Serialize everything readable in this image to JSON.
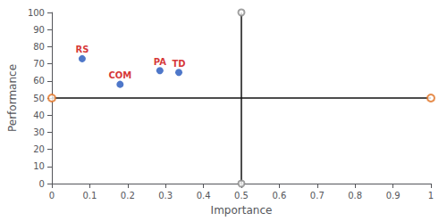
{
  "chart_data": {
    "type": "scatter",
    "xlabel": "Importance",
    "ylabel": "Performance",
    "x": [
      0.08,
      0.18,
      0.285,
      0.335
    ],
    "values": [
      73,
      58,
      66,
      65
    ],
    "color": "#2255bb",
    "annotations": [
      {
        "text": "RS",
        "x": 0.08,
        "y": 73,
        "color": "#cc0000"
      },
      {
        "text": "COM",
        "x": 0.18,
        "y": 58,
        "color": "#cc0000"
      },
      {
        "text": "PA",
        "x": 0.285,
        "y": 66,
        "color": "#cc0000"
      },
      {
        "text": "TD",
        "x": 0.335,
        "y": 65,
        "color": "#cc0000"
      }
    ],
    "crosshair": {
      "x": 0.5,
      "y": 50,
      "color": "#111111"
    },
    "endpoints": {
      "x": [
        0,
        1
      ],
      "values": [
        50,
        50
      ],
      "color": "#e07020",
      "marker": "open circle"
    },
    "intersections": {
      "x": [
        0.5,
        0.5
      ],
      "values": [
        0,
        100
      ],
      "color": "#888888",
      "marker": "open circle"
    },
    "xlim": [
      0,
      1
    ],
    "ylim": [
      0,
      100
    ],
    "xticks": [
      0,
      0.1,
      0.2,
      0.3,
      0.4,
      0.5,
      0.6,
      0.7,
      0.8,
      0.9,
      1
    ],
    "yticks": [
      0,
      10,
      20,
      30,
      40,
      50,
      60,
      70,
      80,
      90,
      100
    ],
    "grid": false
  }
}
